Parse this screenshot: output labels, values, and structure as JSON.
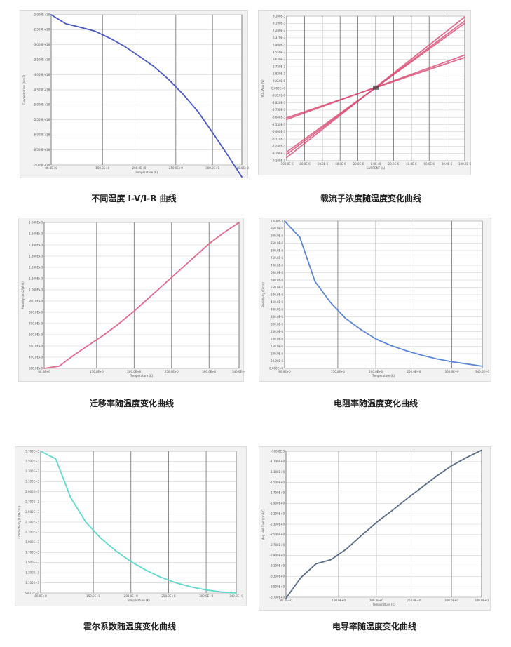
{
  "chart_data": [
    {
      "id": "c1",
      "type": "line",
      "caption": "不同温度 I-V/I-R 曲线",
      "xlabel": "Temperature (K)",
      "ylabel": "Concentration (/cm3)",
      "xlim": [
        80,
        340
      ],
      "ylim": [
        -7e+18,
        -2e+18
      ],
      "x_ticks": [
        80,
        150,
        200,
        250,
        300,
        340
      ],
      "x_tick_labels": [
        "80.0E+0",
        "150.0E+0",
        "200.0E+0",
        "250.0E+0",
        "300.0E+0",
        "340.0E+0"
      ],
      "y_ticks": [
        -2e+18,
        -2.5e+18,
        -3e+18,
        -3.5e+18,
        -4e+18,
        -4.5e+18,
        -5e+18,
        -5.5e+18,
        -6e+18,
        -6.5e+18,
        -7e+18
      ],
      "y_tick_labels": [
        "-2.000E+18",
        "-2.500E+18",
        "-3.000E+18",
        "-3.500E+18",
        "-4.000E+18",
        "-4.500E+18",
        "-5.000E+18",
        "-5.500E+18",
        "-6.000E+18",
        "-6.500E+18",
        "-7.000E+18"
      ],
      "grid": true,
      "color": "#4a58c6",
      "series": [
        {
          "x": [
            80,
            100,
            120,
            140,
            160,
            180,
            200,
            220,
            240,
            260,
            280,
            300,
            320,
            340
          ],
          "y": [
            -2e+18,
            -2.3e+18,
            -2.42e+18,
            -2.55e+18,
            -2.78e+18,
            -3.05e+18,
            -3.38e+18,
            -3.72e+18,
            -4.15e+18,
            -4.65e+18,
            -5.22e+18,
            -5.92e+18,
            -6.65e+18,
            -7.4e+18
          ]
        }
      ]
    },
    {
      "id": "c2",
      "type": "line",
      "caption": "载流子浓度随温度变化曲线",
      "xlabel": "CURRENT (A)",
      "ylabel": "VOLTAGE (V)",
      "xlim": [
        -100,
        100
      ],
      "ylim": [
        -0.0091,
        0.0091
      ],
      "x_ticks": [
        -100,
        -80,
        -60,
        -40,
        -20,
        0,
        20,
        40,
        60,
        80,
        100
      ],
      "x_tick_labels": [
        "-100.0E-6",
        "-80.0E-6",
        "-60.0E-6",
        "-40.0E-6",
        "-20.0E-6",
        "0.0E+0",
        "20.0E-6",
        "40.0E-6",
        "60.0E-6",
        "80.0E-6",
        "100.0E-6"
      ],
      "y_ticks": [
        0.0091,
        0.00819,
        0.00728,
        0.00637,
        0.00546,
        0.00455,
        0.00364,
        0.00273,
        0.00182,
        0.00091,
        0,
        -0.00091,
        -0.00182,
        -0.00273,
        -0.00364,
        -0.00455,
        -0.00546,
        -0.00637,
        -0.00728,
        -0.00819,
        -0.0091
      ],
      "y_tick_labels": [
        "9.100E-3",
        "8.190E-3",
        "7.280E-3",
        "6.370E-3",
        "5.460E-3",
        "4.550E-3",
        "3.640E-3",
        "2.730E-3",
        "1.820E-3",
        "910.0E-6",
        "0.000E+0",
        "-910.0E-6",
        "-1.820E-3",
        "-2.730E-3",
        "-3.640E-3",
        "-4.550E-3",
        "-5.460E-3",
        "-6.370E-3",
        "-7.280E-3",
        "-8.190E-3",
        "-9.100E-3"
      ],
      "grid": true,
      "color": "#d94a72",
      "series": [
        {
          "x": [
            -100,
            100
          ],
          "y": [
            -0.0087,
            0.009
          ]
        },
        {
          "x": [
            -100,
            100
          ],
          "y": [
            -0.0083,
            0.0085
          ]
        },
        {
          "x": [
            -100,
            100
          ],
          "y": [
            -0.008,
            0.0082
          ]
        },
        {
          "x": [
            -100,
            100
          ],
          "y": [
            -0.0039,
            0.0042
          ]
        },
        {
          "x": [
            -100,
            100
          ],
          "y": [
            -0.0037,
            0.0039
          ]
        }
      ]
    },
    {
      "id": "c3",
      "type": "line",
      "caption": "迁移率随温度变化曲线",
      "xlabel": "Temperature (K)",
      "ylabel": "Mobility (cm2/(V·s))",
      "xlim": [
        80,
        340
      ],
      "ylim": [
        300,
        1600
      ],
      "x_ticks": [
        80,
        150,
        200,
        250,
        300,
        340
      ],
      "x_tick_labels": [
        "80.0E+0",
        "150.0E+0",
        "200.0E+0",
        "250.0E+0",
        "300.0E+0",
        "340.0E+0"
      ],
      "y_ticks": [
        1600,
        1500,
        1400,
        1300,
        1200,
        1100,
        1000,
        900,
        800,
        700,
        600,
        500,
        400,
        300
      ],
      "y_tick_labels": [
        "1.600E+3",
        "1.500E+3",
        "1.400E+3",
        "1.300E+3",
        "1.200E+3",
        "1.100E+3",
        "1.000E+3",
        "900.0E+0",
        "800.0E+0",
        "700.0E+0",
        "600.0E+0",
        "500.0E+0",
        "400.0E+0",
        "300.0E+0"
      ],
      "grid": true,
      "color": "#e06b8d",
      "series": [
        {
          "x": [
            80,
            100,
            120,
            140,
            160,
            180,
            200,
            220,
            240,
            260,
            280,
            300,
            320,
            340
          ],
          "y": [
            300,
            320,
            420,
            510,
            600,
            700,
            810,
            930,
            1050,
            1170,
            1290,
            1410,
            1510,
            1600
          ]
        }
      ]
    },
    {
      "id": "c4",
      "type": "line",
      "caption": "电阻率随温度变化曲线",
      "xlabel": "Temperature (K)",
      "ylabel": "Resistivity (Ω·cm)",
      "xlim": [
        80,
        340
      ],
      "ylim": [
        0,
        0.001
      ],
      "x_ticks": [
        80,
        150,
        200,
        250,
        300,
        340
      ],
      "x_tick_labels": [
        "80.0E+0",
        "150.0E+0",
        "200.0E+0",
        "250.0E+0",
        "300.0E+0",
        "340.0E+0"
      ],
      "y_ticks": [
        0.001,
        0.00095,
        0.0009,
        0.00085,
        0.0008,
        0.00075,
        0.0007,
        0.00065,
        0.0006,
        0.00055,
        0.0005,
        0.00045,
        0.0004,
        0.00035,
        0.0003,
        0.00025,
        0.0002,
        0.00015,
        0.0001,
        5e-05,
        0
      ],
      "y_tick_labels": [
        "1.000E-3",
        "950.0E-6",
        "900.0E-6",
        "850.0E-6",
        "800.0E-6",
        "750.0E-6",
        "700.0E-6",
        "650.0E-6",
        "600.0E-6",
        "550.0E-6",
        "500.0E-6",
        "450.0E-6",
        "400.0E-6",
        "350.0E-6",
        "300.0E-6",
        "250.0E-6",
        "200.0E-6",
        "150.0E-6",
        "100.0E-6",
        "50.00E-6",
        "0.000E+0"
      ],
      "grid": true,
      "color": "#5b86d6",
      "series": [
        {
          "x": [
            80,
            100,
            120,
            140,
            160,
            180,
            200,
            220,
            240,
            260,
            280,
            300,
            320,
            340
          ],
          "y": [
            0.001,
            0.00089,
            0.00059,
            0.00045,
            0.00034,
            0.000265,
            0.0002,
            0.000155,
            0.00012,
            9e-05,
            6.5e-05,
            4.5e-05,
            3e-05,
            1.5e-05
          ]
        }
      ]
    },
    {
      "id": "c5",
      "type": "line",
      "caption": "霍尔系数随温度变化曲线",
      "xlabel": "Temperature (K)",
      "ylabel": "Conductivity (1/(Ω·cm))",
      "xlim": [
        80,
        340
      ],
      "ylim": [
        900.0,
        3700.0
      ],
      "x_ticks": [
        80,
        150,
        200,
        250,
        300,
        340
      ],
      "x_tick_labels": [
        "80.0E+0",
        "150.0E+0",
        "200.0E+0",
        "250.0E+0",
        "300.0E+0",
        "340.0E+0"
      ],
      "y_ticks": [
        3700.0,
        3500.0,
        3300.0,
        3100.0,
        2900.0,
        2700.0,
        2500.0,
        2300.0,
        2100.0,
        1900.0,
        1700.0,
        1500.0,
        1300.0,
        1100.0,
        900.0
      ],
      "y_tick_labels": [
        "3.700E+3",
        "3.500E+3",
        "3.300E+3",
        "3.100E+3",
        "2.900E+3",
        "2.700E+3",
        "2.500E+3",
        "2.300E+3",
        "2.100E+3",
        "1.900E+3",
        "1.700E+3",
        "1.500E+3",
        "1.300E+3",
        "1.100E+3",
        "900.0E+0"
      ],
      "grid": true,
      "color": "#5fd9cc",
      "series": [
        {
          "x": [
            80,
            100,
            120,
            140,
            160,
            180,
            200,
            220,
            240,
            260,
            280,
            300,
            320,
            340
          ],
          "y": [
            3700.0,
            3550.0,
            2780.0,
            2300.0,
            1980.0,
            1730.0,
            1520.0,
            1350.0,
            1210.0,
            1100.0,
            1020.0,
            960.0,
            920.0,
            900.0
          ]
        }
      ]
    },
    {
      "id": "c6",
      "type": "line",
      "caption": "电导率随温度变化曲线",
      "xlabel": "Temperature (K)",
      "ylabel": "Avg Hall Coef (cm3/C)",
      "xlim": [
        80,
        340
      ],
      "ylim": [
        -3.7,
        -0.9
      ],
      "x_ticks": [
        80,
        150,
        200,
        250,
        300,
        340
      ],
      "x_tick_labels": [
        "80.0E+0",
        "150.0E+0",
        "200.0E+0",
        "250.0E+0",
        "300.0E+0",
        "340.0E+0"
      ],
      "y_ticks": [
        -0.9,
        -1.1,
        -1.3,
        -1.5,
        -1.7,
        -1.9,
        -2.1,
        -2.3,
        -2.5,
        -2.7,
        -2.9,
        -3.1,
        -3.3,
        -3.5,
        -3.7
      ],
      "y_tick_labels": [
        "-900.0E-3",
        "-1.100E+0",
        "-1.300E+0",
        "-1.500E+0",
        "-1.700E+0",
        "-1.900E+0",
        "-2.100E+0",
        "-2.300E+0",
        "-2.500E+0",
        "-2.700E+0",
        "-2.900E+0",
        "-3.100E+0",
        "-3.300E+0",
        "-3.500E+0",
        "-3.700E+0"
      ],
      "grid": true,
      "color": "#5a6d86",
      "series": [
        {
          "x": [
            80,
            100,
            120,
            140,
            160,
            180,
            200,
            220,
            240,
            260,
            280,
            300,
            320,
            340
          ],
          "y": [
            -3.72,
            -3.32,
            -3.06,
            -2.98,
            -2.78,
            -2.52,
            -2.27,
            -2.05,
            -1.82,
            -1.6,
            -1.38,
            -1.18,
            -1.02,
            -0.88
          ]
        }
      ]
    }
  ]
}
